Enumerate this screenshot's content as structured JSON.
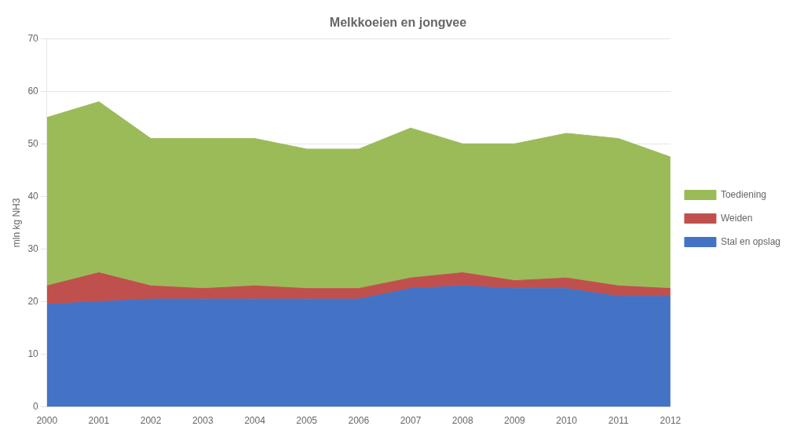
{
  "chart_data": {
    "type": "area",
    "title": "Melkkoeien en jongvee",
    "ylabel": "mln kg NH3",
    "x": [
      2000,
      2001,
      2002,
      2003,
      2004,
      2005,
      2006,
      2007,
      2008,
      2009,
      2010,
      2011,
      2012
    ],
    "series": [
      {
        "name": "Stal en opslag",
        "color": "#4472C4",
        "values": [
          19.5,
          20.0,
          20.5,
          20.5,
          20.5,
          20.5,
          20.5,
          22.5,
          23.0,
          22.5,
          22.5,
          21.0,
          21.0
        ]
      },
      {
        "name": "Weiden",
        "color": "#C0504D",
        "values": [
          3.5,
          5.5,
          2.5,
          2.0,
          2.5,
          2.0,
          2.0,
          2.0,
          2.5,
          1.5,
          2.0,
          2.0,
          1.5
        ]
      },
      {
        "name": "Toediening",
        "color": "#9BBB59",
        "values": [
          32.0,
          32.5,
          28.0,
          28.5,
          28.0,
          26.5,
          26.5,
          28.5,
          24.5,
          26.0,
          27.5,
          28.0,
          25.0
        ]
      }
    ],
    "xlim": [
      2000,
      2012
    ],
    "xticks": [
      2000,
      2001,
      2002,
      2003,
      2004,
      2005,
      2006,
      2007,
      2008,
      2009,
      2010,
      2011,
      2012
    ],
    "ylim": [
      0,
      70
    ],
    "yticks": [
      0,
      10,
      20,
      30,
      40,
      50,
      60,
      70
    ],
    "stacked": true,
    "grid": true,
    "legend": "right"
  }
}
